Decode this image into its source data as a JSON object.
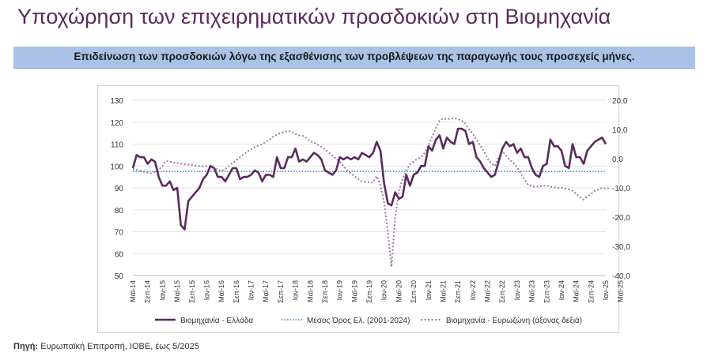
{
  "header": {
    "title": "Υποχώρηση των επιχειρηματικών προσδοκιών στη Βιομηχανία",
    "subtitle": "Επιδείνωση των προσδοκιών λόγω της εξασθένισης των προβλέψεων της παραγωγής τους προσεχείς μήνες."
  },
  "footer": {
    "source_label": "Πηγή:",
    "source_text": " Ευρωπαϊκή Επιτροπή, ΙΟΒΕ, έως 5/2025"
  },
  "colors": {
    "title": "#5b2a5e",
    "greece_line": "#5b2a5e",
    "average_line": "#4a90c8",
    "eurozone_line": "#9a7a9e",
    "subtitle_band": "#a9c2e6"
  },
  "chart_data": {
    "type": "line",
    "x_tick_labels": [
      "Μαϊ-14",
      "Σεπ-14",
      "Ιαν-15",
      "Μαϊ-15",
      "Σεπ-15",
      "Ιαν-16",
      "Μαϊ-16",
      "Σεπ-16",
      "Ιαν-17",
      "Μαϊ-17",
      "Σεπ-17",
      "Ιαν-18",
      "Μαϊ-18",
      "Σεπ-18",
      "Ιαν-19",
      "Μαϊ-19",
      "Σεπ-19",
      "Ιαν-20",
      "Μαϊ-20",
      "Σεπ-20",
      "Ιαν-21",
      "Μαϊ-21",
      "Σεπ-21",
      "Ιαν-22",
      "Μαϊ-22",
      "Σεπ-22",
      "Ιαν-23",
      "Μαϊ-23",
      "Σεπ-23",
      "Ιαν-24",
      "Μαϊ-24",
      "Σεπ-24",
      "Ιαν-25",
      "Μαϊ-25"
    ],
    "y_left": {
      "ticks": [
        "50",
        "60",
        "70",
        "80",
        "90",
        "100",
        "110",
        "120",
        "130"
      ],
      "min": 50,
      "max": 130
    },
    "y_right": {
      "ticks": [
        "-40,0",
        "-30,0",
        "-20,0",
        "-10,0",
        "0,0",
        "10,0",
        "20,0"
      ],
      "min": -40,
      "max": 20
    },
    "grid": "horizontal",
    "legend_position": "bottom",
    "series": [
      {
        "name": "Βιομηχανία - Ελλάδα",
        "axis": "left",
        "style": "solid",
        "values": [
          99,
          105,
          104,
          104,
          101,
          103,
          102,
          95,
          91,
          91,
          93,
          89,
          90,
          73,
          71,
          84,
          86,
          88,
          90,
          94,
          96,
          100,
          99,
          95,
          95,
          93,
          96,
          99,
          99,
          94,
          95,
          95,
          96,
          98,
          97,
          93,
          96,
          96,
          95,
          104,
          99,
          99,
          104,
          104,
          108,
          102,
          103,
          102,
          104,
          106,
          105,
          103,
          98,
          97,
          96,
          98,
          104,
          103,
          104,
          103,
          104,
          103,
          106,
          105,
          104,
          106,
          111,
          107,
          92,
          83,
          82,
          88,
          85,
          86,
          96,
          91,
          96,
          97,
          100,
          100,
          109,
          107,
          112,
          114,
          108,
          113,
          111,
          110,
          117,
          117,
          116,
          110,
          111,
          104,
          102,
          99,
          97,
          95,
          96,
          102,
          108,
          111,
          109,
          110,
          106,
          108,
          104,
          104,
          99,
          96,
          95,
          100,
          101,
          112,
          109,
          109,
          107,
          100,
          99,
          110,
          104,
          104,
          101,
          107,
          109,
          111,
          112,
          113,
          110
        ]
      },
      {
        "name": "Μέσος Όρος Ελ. (2001-2024)",
        "axis": "left",
        "style": "dotted",
        "values": [
          97.5
        ]
      },
      {
        "name": "Βιομηχανία - Ευρωζώνη (άξονας δεξιά)",
        "axis": "right",
        "style": "dotted",
        "values": [
          -3.5,
          -3.8,
          -4.2,
          -4.5,
          -4.8,
          -5,
          -4.5,
          -3.8,
          -2.5,
          -0.8,
          -1,
          -1.3,
          -1.5,
          -1.7,
          -1.9,
          -2,
          -2.2,
          -2.4,
          -2.5,
          -2.6,
          -2.6,
          -2.8,
          -3.2,
          -3.8,
          -4.2,
          -3.5,
          -2.5,
          -1.5,
          -0.5,
          0.5,
          1.5,
          2.5,
          3.2,
          4,
          4.5,
          5,
          5.8,
          6.5,
          7.5,
          8.3,
          8.8,
          9.2,
          9.5,
          9.2,
          8.5,
          8,
          7.8,
          7,
          6,
          5.5,
          4.8,
          4,
          3.2,
          2.2,
          1,
          0,
          -1,
          -2.5,
          -4,
          -5,
          -6,
          -7,
          -7.8,
          -8,
          -8,
          -8.2,
          -6,
          -9,
          -15,
          -25,
          -37,
          -20,
          -11,
          -7,
          -4,
          -2,
          -1,
          0,
          0.5,
          2,
          4.5,
          7.5,
          10.5,
          13,
          13.8,
          13.5,
          13.7,
          13.8,
          13.5,
          13,
          12,
          10,
          8.5,
          6.5,
          4.5,
          2.5,
          0,
          -1.5,
          -2.5,
          0.5,
          2.5,
          1,
          -0.5,
          -1.5,
          -3,
          -5,
          -7,
          -9,
          -9.5,
          -9.5,
          -9.5,
          -9.3,
          -9.2,
          -9.6,
          -9.8,
          -10,
          -10,
          -10.2,
          -10.5,
          -11,
          -12,
          -13.2,
          -14,
          -13,
          -12,
          -11,
          -10.5,
          -10,
          -10.3,
          -10
        ]
      }
    ]
  }
}
